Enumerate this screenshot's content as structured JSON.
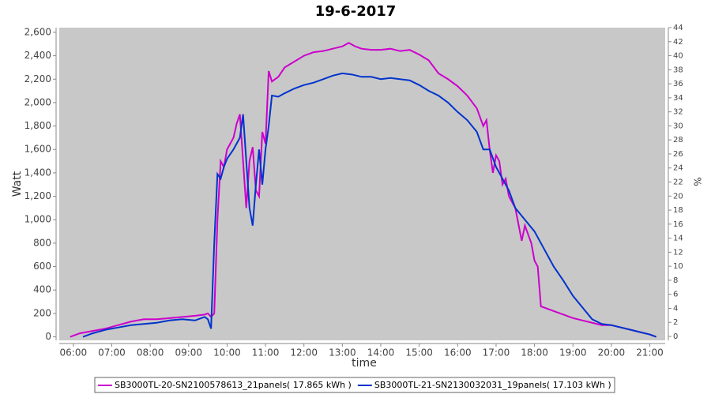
{
  "chart_data": {
    "type": "line",
    "title": "19-6-2017",
    "x_label": "time",
    "y_label": "Watt",
    "y2_label": "%",
    "xlim": [
      "05:38",
      "21:24"
    ],
    "xticks": [
      "06:00",
      "07:00",
      "08:00",
      "09:00",
      "10:00",
      "11:00",
      "12:00",
      "13:00",
      "14:00",
      "15:00",
      "16:00",
      "17:00",
      "18:00",
      "19:00",
      "20:00",
      "21:00"
    ],
    "ylim": [
      -30,
      2640
    ],
    "yticks": [
      0,
      200,
      400,
      600,
      800,
      {
        "value": 1000,
        "label": "1,000"
      },
      {
        "value": 1200,
        "label": "1,200"
      },
      {
        "value": 1400,
        "label": "1,400"
      },
      {
        "value": 1600,
        "label": "1,600"
      },
      {
        "value": 1800,
        "label": "1,800"
      },
      {
        "value": 2000,
        "label": "2,000"
      },
      {
        "value": 2200,
        "label": "2,200"
      },
      {
        "value": 2400,
        "label": "2,400"
      },
      {
        "value": 2600,
        "label": "2,600"
      }
    ],
    "y2lim": [
      -0.56,
      44
    ],
    "y2ticks": [
      0,
      2,
      4,
      6,
      8,
      10,
      12,
      14,
      16,
      18,
      20,
      22,
      24,
      26,
      28,
      30,
      32,
      34,
      36,
      38,
      40,
      42,
      44
    ],
    "grid": false,
    "legend": "bottom",
    "series": [
      {
        "name": "SB3000TL-20-SN2100578613_21panels( 17.865 kWh )",
        "color": "#cc00cc",
        "x": [
          "05:55",
          "06:10",
          "06:30",
          "06:50",
          "07:10",
          "07:30",
          "07:50",
          "08:10",
          "08:30",
          "08:50",
          "09:10",
          "09:25",
          "09:30",
          "09:35",
          "09:40",
          "09:45",
          "09:50",
          "09:55",
          "10:00",
          "10:10",
          "10:15",
          "10:20",
          "10:25",
          "10:30",
          "10:35",
          "10:40",
          "10:45",
          "10:50",
          "10:55",
          "11:00",
          "11:05",
          "11:10",
          "11:20",
          "11:30",
          "11:45",
          "12:00",
          "12:15",
          "12:30",
          "12:45",
          "13:00",
          "13:10",
          "13:20",
          "13:30",
          "13:45",
          "14:00",
          "14:15",
          "14:30",
          "14:45",
          "15:00",
          "15:15",
          "15:30",
          "15:45",
          "16:00",
          "16:15",
          "16:30",
          "16:40",
          "16:45",
          "16:50",
          "16:55",
          "17:00",
          "17:05",
          "17:10",
          "17:15",
          "17:20",
          "17:30",
          "17:40",
          "17:45",
          "17:55",
          "18:00",
          "18:05",
          "18:10",
          "18:20",
          "18:30",
          "18:45",
          "19:00",
          "19:15",
          "19:30",
          "19:45",
          "20:00",
          "20:15",
          "20:30",
          "20:45",
          "21:00",
          "21:10"
        ],
        "values": [
          0,
          30,
          50,
          70,
          100,
          130,
          150,
          150,
          160,
          170,
          180,
          190,
          200,
          170,
          200,
          1000,
          1500,
          1450,
          1600,
          1700,
          1820,
          1900,
          1500,
          1100,
          1500,
          1620,
          1250,
          1200,
          1750,
          1650,
          2270,
          2180,
          2220,
          2300,
          2350,
          2400,
          2430,
          2440,
          2460,
          2480,
          2510,
          2480,
          2460,
          2450,
          2450,
          2460,
          2440,
          2450,
          2410,
          2360,
          2250,
          2200,
          2140,
          2060,
          1950,
          1800,
          1850,
          1600,
          1400,
          1550,
          1500,
          1300,
          1350,
          1200,
          1100,
          820,
          950,
          800,
          650,
          600,
          260,
          240,
          220,
          190,
          160,
          140,
          120,
          100,
          100,
          80,
          60,
          40,
          20,
          0
        ]
      },
      {
        "name": "SB3000TL-21-SN2130032031_19panels( 17.103 kWh )",
        "color": "#0033cc",
        "x": [
          "06:15",
          "06:30",
          "06:50",
          "07:10",
          "07:30",
          "07:50",
          "08:10",
          "08:30",
          "08:50",
          "09:10",
          "09:25",
          "09:30",
          "09:35",
          "09:40",
          "09:45",
          "09:50",
          "09:55",
          "10:00",
          "10:10",
          "10:20",
          "10:25",
          "10:30",
          "10:35",
          "10:40",
          "10:45",
          "10:50",
          "10:55",
          "11:00",
          "11:05",
          "11:10",
          "11:20",
          "11:30",
          "11:45",
          "12:00",
          "12:15",
          "12:30",
          "12:45",
          "13:00",
          "13:15",
          "13:30",
          "13:45",
          "14:00",
          "14:15",
          "14:30",
          "14:45",
          "15:00",
          "15:15",
          "15:30",
          "15:45",
          "16:00",
          "16:15",
          "16:30",
          "16:40",
          "16:50",
          "17:00",
          "17:10",
          "17:20",
          "17:30",
          "17:45",
          "18:00",
          "18:15",
          "18:30",
          "18:45",
          "19:00",
          "19:15",
          "19:30",
          "19:45",
          "20:00",
          "20:15",
          "20:30",
          "20:45",
          "21:00",
          "21:10"
        ],
        "values": [
          0,
          30,
          60,
          80,
          100,
          110,
          120,
          140,
          150,
          140,
          170,
          150,
          70,
          800,
          1390,
          1350,
          1450,
          1520,
          1600,
          1700,
          1900,
          1500,
          1100,
          950,
          1300,
          1600,
          1300,
          1600,
          1800,
          2060,
          2050,
          2080,
          2120,
          2150,
          2170,
          2200,
          2230,
          2250,
          2240,
          2220,
          2220,
          2200,
          2210,
          2200,
          2190,
          2150,
          2100,
          2060,
          2000,
          1920,
          1850,
          1750,
          1600,
          1600,
          1450,
          1350,
          1250,
          1100,
          1000,
          900,
          750,
          600,
          480,
          350,
          250,
          150,
          110,
          100,
          80,
          60,
          40,
          20,
          0
        ]
      }
    ]
  }
}
